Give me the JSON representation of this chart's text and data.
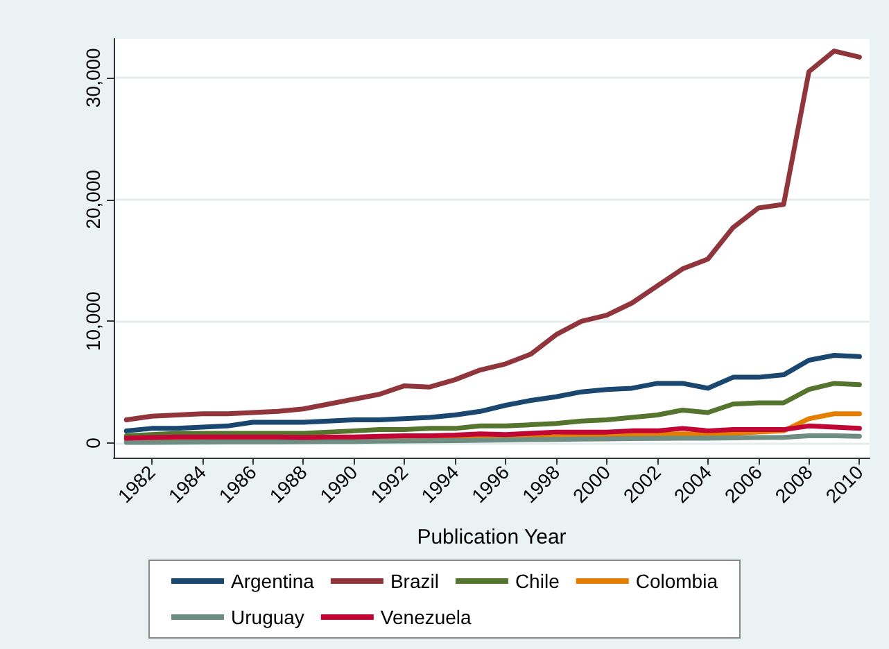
{
  "chart_data": {
    "type": "line",
    "xlabel": "Publication Year",
    "x": [
      1981,
      1982,
      1983,
      1984,
      1985,
      1986,
      1987,
      1988,
      1989,
      1990,
      1991,
      1992,
      1993,
      1994,
      1995,
      1996,
      1997,
      1998,
      1999,
      2000,
      2001,
      2002,
      2003,
      2004,
      2005,
      2006,
      2007,
      2008,
      2009,
      2010
    ],
    "series": [
      {
        "name": "Argentina",
        "color": "#1a476f",
        "values": [
          1000,
          1200,
          1200,
          1300,
          1400,
          1700,
          1700,
          1700,
          1800,
          1900,
          1900,
          2000,
          2100,
          2300,
          2600,
          3100,
          3500,
          3800,
          4200,
          4400,
          4500,
          4900,
          4900,
          4500,
          5400,
          5400,
          5600,
          6800,
          7200,
          7100
        ]
      },
      {
        "name": "Brazil",
        "color": "#90353b",
        "values": [
          1900,
          2200,
          2300,
          2400,
          2400,
          2500,
          2600,
          2800,
          3200,
          3600,
          4000,
          4700,
          4600,
          5200,
          6000,
          6500,
          7300,
          8900,
          10000,
          10500,
          11500,
          12900,
          14300,
          15100,
          17700,
          19300,
          19600,
          30500,
          32200,
          31700
        ]
      },
      {
        "name": "Chile",
        "color": "#55752f",
        "values": [
          600,
          700,
          800,
          800,
          800,
          800,
          800,
          800,
          900,
          1000,
          1100,
          1100,
          1200,
          1200,
          1400,
          1400,
          1500,
          1600,
          1800,
          1900,
          2100,
          2300,
          2700,
          2500,
          3200,
          3300,
          3300,
          4400,
          4900,
          4800
        ]
      },
      {
        "name": "Colombia",
        "color": "#e37e00",
        "values": [
          200,
          200,
          200,
          200,
          200,
          200,
          200,
          200,
          200,
          250,
          300,
          300,
          300,
          350,
          400,
          400,
          450,
          500,
          550,
          600,
          650,
          700,
          750,
          700,
          800,
          900,
          1000,
          2000,
          2400,
          2400
        ]
      },
      {
        "name": "Uruguay",
        "color": "#6e8e84",
        "values": [
          50,
          60,
          70,
          80,
          90,
          100,
          100,
          110,
          120,
          130,
          150,
          170,
          180,
          200,
          220,
          250,
          280,
          300,
          320,
          340,
          360,
          380,
          400,
          400,
          420,
          450,
          460,
          600,
          600,
          550
        ]
      },
      {
        "name": "Venezuela",
        "color": "#c10534",
        "values": [
          400,
          450,
          500,
          500,
          500,
          500,
          500,
          450,
          500,
          500,
          550,
          600,
          600,
          650,
          750,
          700,
          800,
          900,
          900,
          900,
          1000,
          1000,
          1200,
          1000,
          1100,
          1100,
          1100,
          1400,
          1300,
          1200
        ]
      }
    ],
    "xlim": [
      1980.5,
      2010.4
    ],
    "xticks": [
      1982,
      1984,
      1986,
      1988,
      1990,
      1992,
      1994,
      1996,
      1998,
      2000,
      2002,
      2004,
      2006,
      2008,
      2010
    ],
    "ylim": [
      -1200,
      33200
    ],
    "yticks": [
      {
        "value": 0,
        "label": "0"
      },
      {
        "value": 10000,
        "label": "10,000"
      },
      {
        "value": 20000,
        "label": "20,000"
      },
      {
        "value": 30000,
        "label": "30,000"
      }
    ],
    "grid": "y",
    "legend": "bottom",
    "marker": "none",
    "line_style": "solid"
  }
}
